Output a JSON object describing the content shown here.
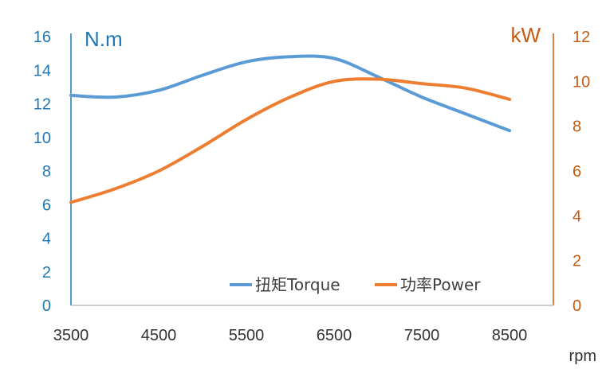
{
  "chart_data": {
    "type": "line",
    "title": "",
    "xlabel": "rpm",
    "ylabel_left": "N.m",
    "ylabel_right": "kW",
    "x_ticks": [
      3500,
      4500,
      5500,
      6500,
      7500,
      8500
    ],
    "xlim": [
      3500,
      9000
    ],
    "ylim_left": [
      0,
      16
    ],
    "ylim_right": [
      0,
      12
    ],
    "y_ticks_left": [
      0,
      2,
      4,
      6,
      8,
      10,
      12,
      14,
      16
    ],
    "y_ticks_right": [
      0,
      2,
      4,
      6,
      8,
      10,
      12
    ],
    "grid": false,
    "legend_position": "bottom-right",
    "series": [
      {
        "name": "扭矩Torque",
        "axis": "left",
        "color": "#5b9bd5",
        "x": [
          3500,
          4000,
          4500,
          5000,
          5500,
          6000,
          6500,
          7000,
          7500,
          8000,
          8500
        ],
        "y": [
          12.5,
          12.4,
          12.8,
          13.7,
          14.5,
          14.8,
          14.7,
          13.6,
          12.4,
          11.4,
          10.4
        ]
      },
      {
        "name": "功率Power",
        "axis": "right",
        "color": "#ed7d31",
        "x": [
          3500,
          4000,
          4500,
          5000,
          5500,
          6000,
          6500,
          7000,
          7500,
          8000,
          8500
        ],
        "y": [
          4.6,
          5.2,
          6.0,
          7.1,
          8.3,
          9.3,
          10.0,
          10.1,
          9.9,
          9.7,
          9.2
        ]
      }
    ]
  }
}
